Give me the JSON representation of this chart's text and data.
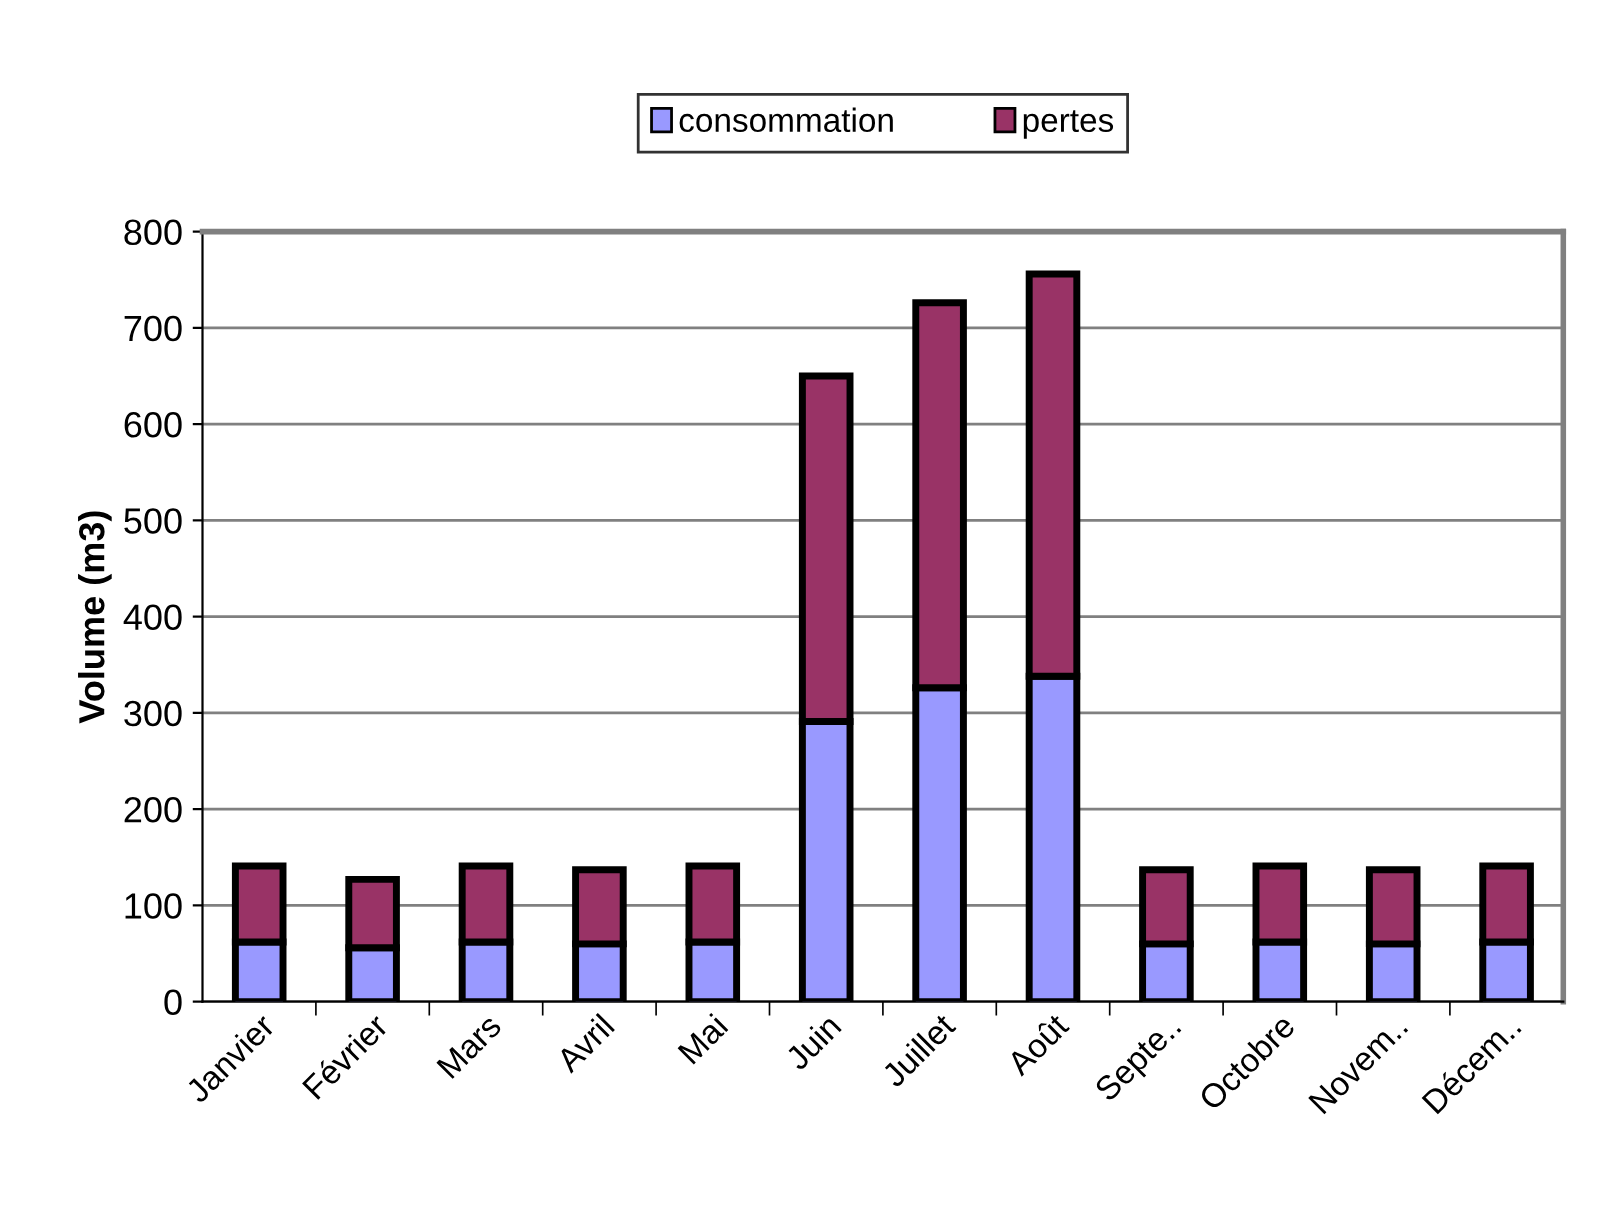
{
  "chart_data": {
    "type": "bar",
    "stacked": true,
    "ylabel": "Volume (m3)",
    "categories": [
      "Janvier",
      "Février",
      "Mars",
      "Avril",
      "Mai",
      "Juin",
      "Juillet",
      "Août",
      "Septe..",
      "Octobre",
      "Novem..",
      "Décem.."
    ],
    "series": [
      {
        "name": "consommation",
        "color": "#9999ff",
        "values": [
          62,
          56,
          62,
          60,
          62,
          291,
          326,
          338,
          60,
          62,
          60,
          62
        ]
      },
      {
        "name": "pertes",
        "color": "#993366",
        "values": [
          79,
          71,
          79,
          77,
          79,
          359,
          400,
          418,
          77,
          79,
          77,
          79
        ]
      }
    ],
    "ylim": [
      0,
      800
    ],
    "yticks": [
      0,
      100,
      200,
      300,
      400,
      500,
      600,
      700,
      800
    ],
    "grid": "y",
    "legend": "top"
  }
}
